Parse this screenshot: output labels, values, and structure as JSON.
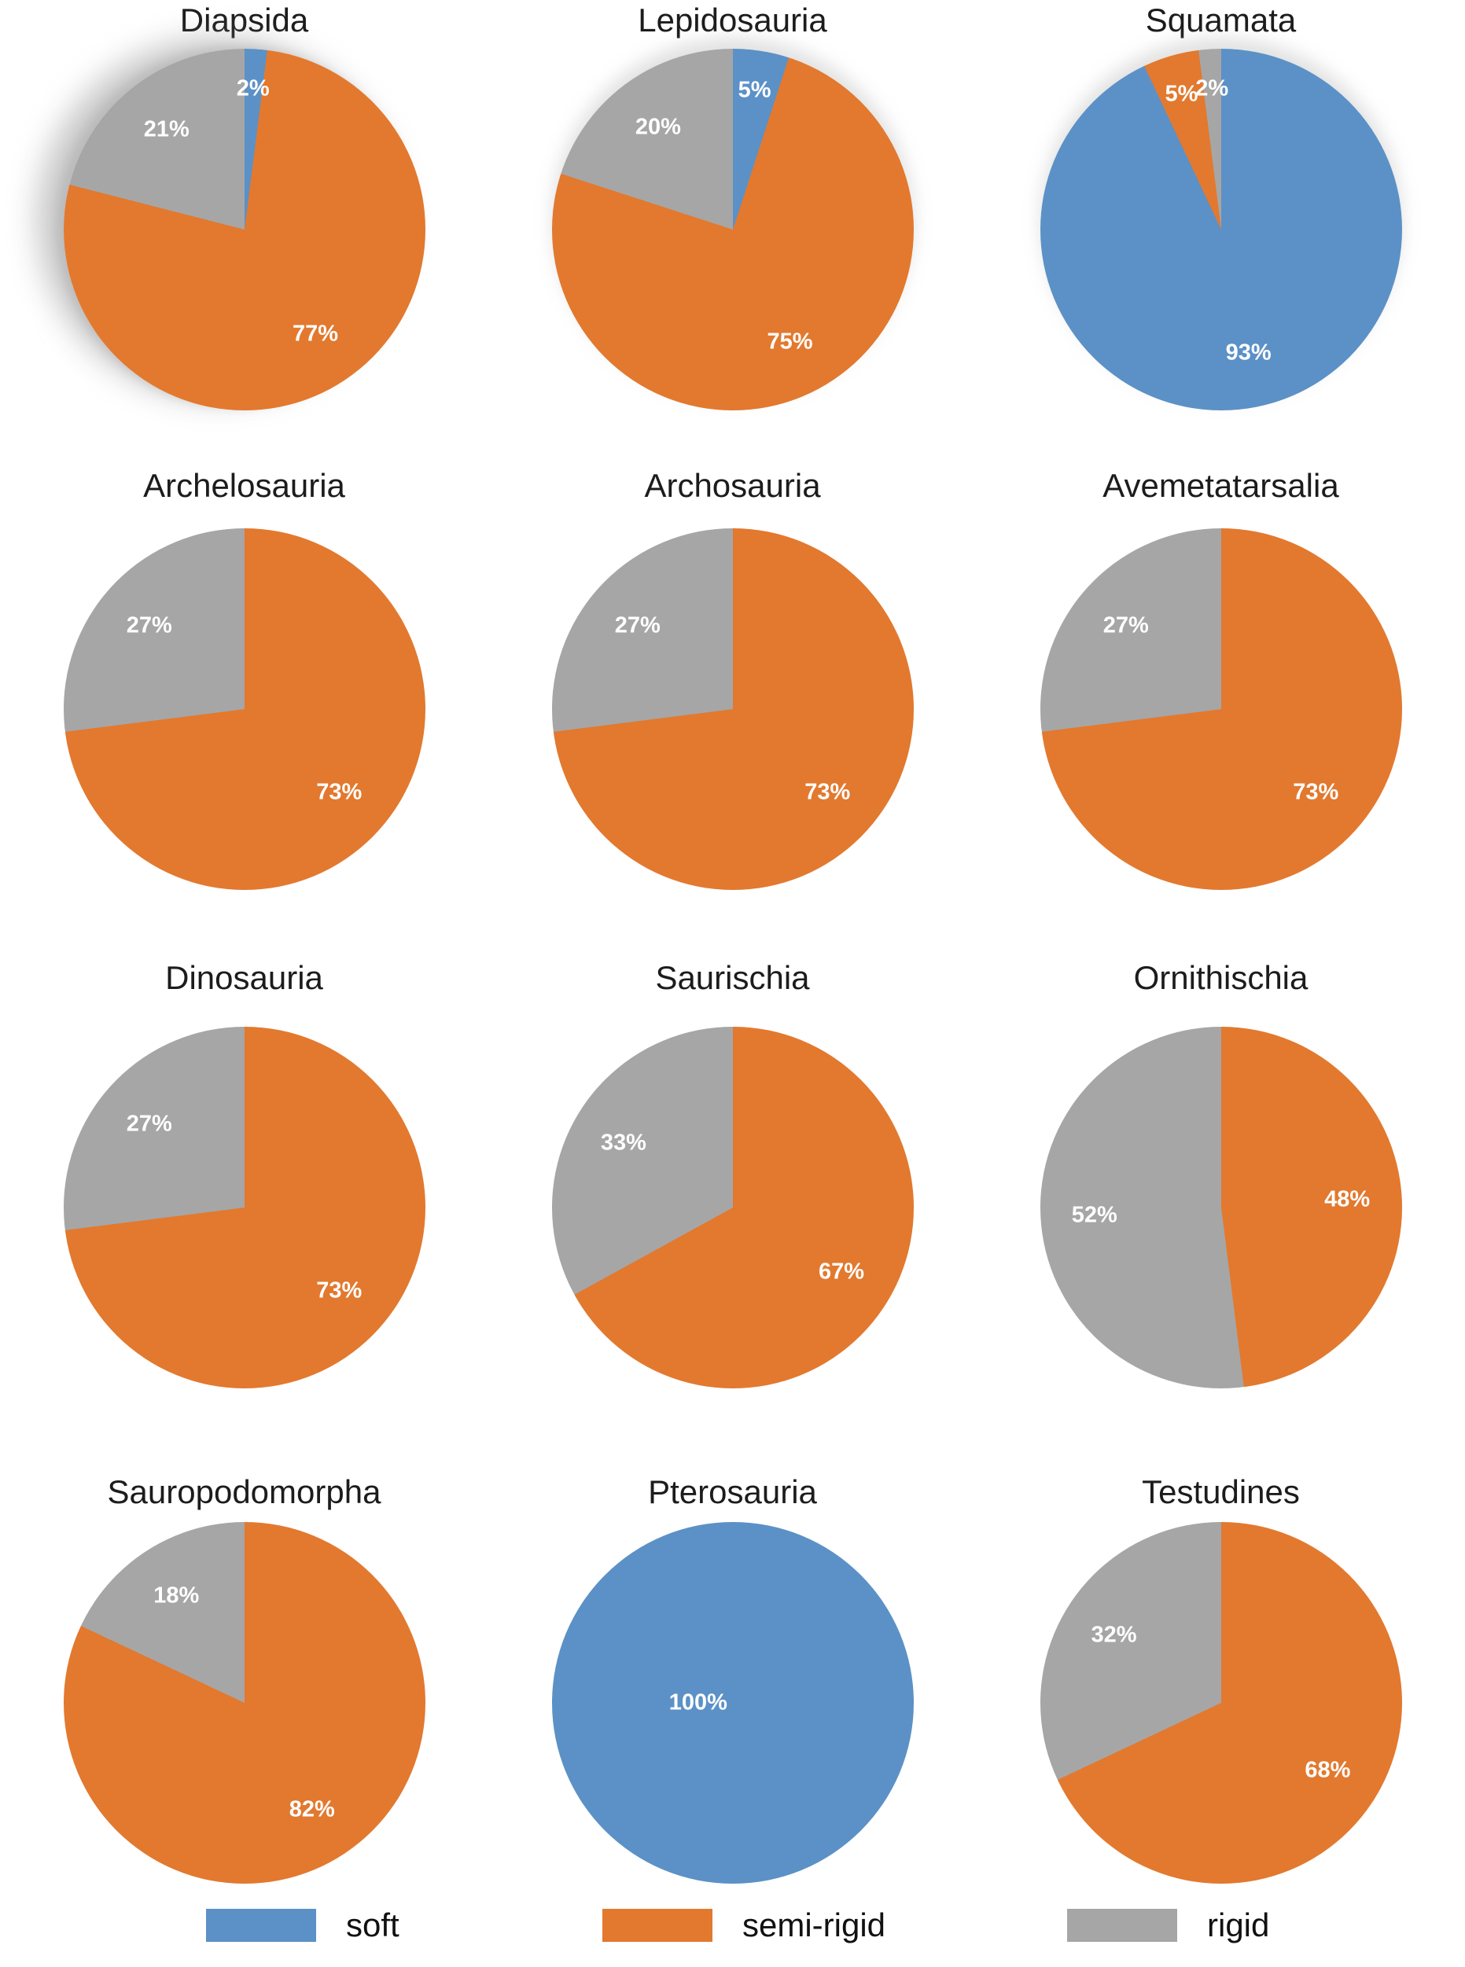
{
  "colors": {
    "soft": "#5B91C6",
    "semi-rigid": "#E2792F",
    "rigid": "#A6A6A6"
  },
  "legend": {
    "items": [
      {
        "label": "soft",
        "color": "#5B91C6"
      },
      {
        "label": "semi-rigid",
        "color": "#E2792F"
      },
      {
        "label": "rigid",
        "color": "#A6A6A6"
      }
    ]
  },
  "chart_data": [
    {
      "type": "pie",
      "title": "Diapsida",
      "labels": [
        "soft",
        "semi-rigid",
        "rigid"
      ],
      "values": [
        2,
        77,
        21
      ],
      "value_labels": [
        "2%",
        "77%",
        "21%"
      ]
    },
    {
      "type": "pie",
      "title": "Lepidosauria",
      "labels": [
        "soft",
        "semi-rigid",
        "rigid"
      ],
      "values": [
        5,
        75,
        20
      ],
      "value_labels": [
        "5%",
        "75%",
        "20%"
      ]
    },
    {
      "type": "pie",
      "title": "Squamata",
      "labels": [
        "soft",
        "semi-rigid",
        "rigid"
      ],
      "values": [
        93,
        5,
        2
      ],
      "value_labels": [
        "93%",
        "5%",
        "2%"
      ]
    },
    {
      "type": "pie",
      "title": "Archelosauria",
      "labels": [
        "semi-rigid",
        "rigid"
      ],
      "values": [
        73,
        27
      ],
      "value_labels": [
        "73%",
        "27%"
      ]
    },
    {
      "type": "pie",
      "title": "Archosauria",
      "labels": [
        "semi-rigid",
        "rigid"
      ],
      "values": [
        73,
        27
      ],
      "value_labels": [
        "73%",
        "27%"
      ]
    },
    {
      "type": "pie",
      "title": "Avemetatarsalia",
      "labels": [
        "semi-rigid",
        "rigid"
      ],
      "values": [
        73,
        27
      ],
      "value_labels": [
        "73%",
        "27%"
      ]
    },
    {
      "type": "pie",
      "title": "Dinosauria",
      "labels": [
        "semi-rigid",
        "rigid"
      ],
      "values": [
        73,
        27
      ],
      "value_labels": [
        "73%",
        "27%"
      ]
    },
    {
      "type": "pie",
      "title": "Saurischia",
      "labels": [
        "semi-rigid",
        "rigid"
      ],
      "values": [
        67,
        33
      ],
      "value_labels": [
        "67%",
        "33%"
      ]
    },
    {
      "type": "pie",
      "title": "Ornithischia",
      "labels": [
        "semi-rigid",
        "rigid"
      ],
      "values": [
        48,
        52
      ],
      "value_labels": [
        "48%",
        "52%"
      ]
    },
    {
      "type": "pie",
      "title": "Sauropodomorpha",
      "labels": [
        "semi-rigid",
        "rigid"
      ],
      "values": [
        82,
        18
      ],
      "value_labels": [
        "82%",
        "18%"
      ]
    },
    {
      "type": "pie",
      "title": "Pterosauria",
      "labels": [
        "soft"
      ],
      "values": [
        100
      ],
      "value_labels": [
        "100%"
      ]
    },
    {
      "type": "pie",
      "title": "Testudines",
      "labels": [
        "semi-rigid",
        "rigid"
      ],
      "values": [
        68,
        32
      ],
      "value_labels": [
        "68%",
        "32%"
      ]
    }
  ]
}
